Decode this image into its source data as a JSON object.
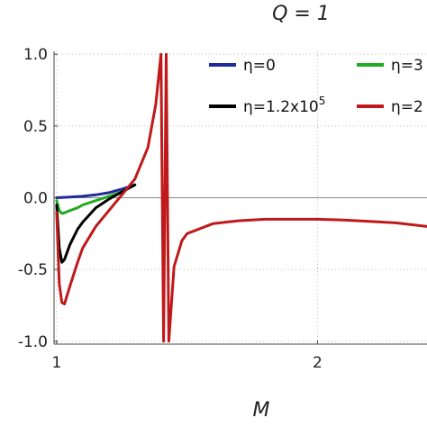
{
  "chart_data": {
    "type": "line",
    "title": "Q = 1",
    "xlabel": "M",
    "ylabel": "",
    "xlim": [
      0.99,
      2.42
    ],
    "ylim": [
      -1.02,
      1.02
    ],
    "x_ticks": [
      1,
      2
    ],
    "y_ticks": [
      -1.0,
      -0.5,
      0.0,
      0.5,
      1.0
    ],
    "x_tick_labels": [
      "1",
      "2"
    ],
    "y_tick_labels": [
      "-1.0",
      "-0.5",
      "0.0",
      "0.5",
      "1.0"
    ],
    "grid": "dotted",
    "legend_placement": "top",
    "series": [
      {
        "name": "η=0",
        "legend_label": "η=0",
        "color": "#1f2a9c",
        "x": [
          1.0,
          1.05,
          1.1,
          1.15,
          1.2,
          1.25,
          1.3
        ],
        "y": [
          0.0,
          0.005,
          0.01,
          0.02,
          0.035,
          0.06,
          0.09
        ]
      },
      {
        "name": "η=3",
        "legend_label": "η=3",
        "color": "#22aa22",
        "x": [
          1.0,
          1.01,
          1.02,
          1.03,
          1.05,
          1.08,
          1.1,
          1.15,
          1.2,
          1.25,
          1.3
        ],
        "y": [
          -0.02,
          -0.09,
          -0.11,
          -0.105,
          -0.09,
          -0.07,
          -0.05,
          -0.02,
          0.01,
          0.04,
          0.09
        ]
      },
      {
        "name": "η=1.2x10^5",
        "legend_label": "η=1.2x10",
        "legend_exponent": "5",
        "color": "#000000",
        "x": [
          1.0,
          1.01,
          1.02,
          1.03,
          1.05,
          1.08,
          1.1,
          1.15,
          1.2,
          1.25,
          1.3
        ],
        "y": [
          -0.05,
          -0.35,
          -0.45,
          -0.43,
          -0.33,
          -0.22,
          -0.17,
          -0.07,
          -0.01,
          0.04,
          0.09
        ]
      },
      {
        "name": "η=2",
        "legend_label": "η=2",
        "color": "#c0191b",
        "x": [
          1.0,
          1.01,
          1.02,
          1.03,
          1.05,
          1.08,
          1.1,
          1.15,
          1.2,
          1.25,
          1.3,
          1.35,
          1.38,
          1.4,
          1.41,
          1.42,
          1.43,
          1.45,
          1.48,
          1.5,
          1.6,
          1.7,
          1.8,
          1.9,
          2.0,
          2.1,
          2.2,
          2.3,
          2.42
        ],
        "y": [
          -0.1,
          -0.6,
          -0.73,
          -0.74,
          -0.62,
          -0.45,
          -0.35,
          -0.2,
          -0.09,
          0.02,
          0.13,
          0.35,
          0.65,
          1.0,
          -1.0,
          1.0,
          -1.0,
          -0.48,
          -0.3,
          -0.25,
          -0.18,
          -0.16,
          -0.15,
          -0.15,
          -0.15,
          -0.155,
          -0.165,
          -0.175,
          -0.2
        ]
      }
    ]
  }
}
